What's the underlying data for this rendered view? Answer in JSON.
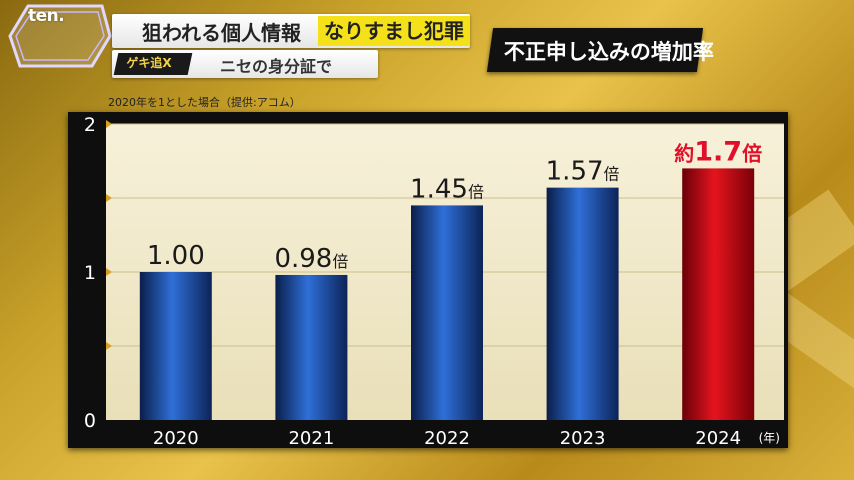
{
  "header": {
    "logo": "ten.",
    "headline": "狙われる個人情報",
    "headline_highlight": "なりすまし犯罪",
    "badge": "ゲキ追X",
    "subtitle": "ニセの身分証で",
    "topic": "不正申し込みの増加率"
  },
  "note": "2020年を1とした場合（提供:アコム）",
  "colors": {
    "bar_blue": "#1f4fa8",
    "bar_red": "#d0101a",
    "highlight_yellow": "#f4e11a",
    "label_red": "#e0102a"
  },
  "chart_data": {
    "type": "bar",
    "categories": [
      "2020",
      "2021",
      "2022",
      "2023",
      "2024"
    ],
    "values": [
      1.0,
      0.98,
      1.45,
      1.57,
      1.7
    ],
    "value_labels": [
      {
        "num": "1.00",
        "unit": ""
      },
      {
        "num": "0.98",
        "unit": "倍"
      },
      {
        "num": "1.45",
        "unit": "倍"
      },
      {
        "num": "1.57",
        "unit": "倍"
      },
      {
        "prefix": "約",
        "num": "1.7",
        "unit": "倍"
      }
    ],
    "highlight_index": 4,
    "ylim": [
      0,
      2
    ],
    "yticks": [
      "0",
      "1",
      "2"
    ],
    "xlabel": "(年)",
    "grid": true
  }
}
